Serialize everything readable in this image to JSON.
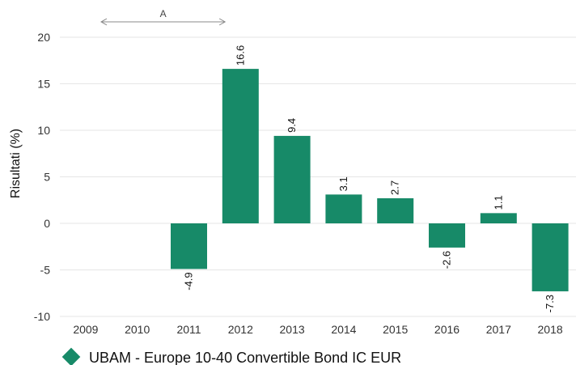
{
  "chart_data": {
    "type": "bar",
    "categories": [
      "2009",
      "2010",
      "2011",
      "2012",
      "2013",
      "2014",
      "2015",
      "2016",
      "2017",
      "2018"
    ],
    "series": [
      {
        "name": "UBAM - Europe 10-40 Convertible Bond IC EUR",
        "values": [
          null,
          null,
          -4.9,
          16.6,
          9.4,
          3.1,
          2.7,
          -2.6,
          1.1,
          -7.3
        ]
      }
    ],
    "data_labels": [
      "",
      "",
      "-4.9",
      "16.6",
      "9.4",
      "3.1",
      "2.7",
      "-2.6",
      "1.1",
      "-7.3"
    ],
    "ylabel": "Risultati (%)",
    "ylim": [
      -10,
      20
    ],
    "yticks": [
      -10,
      -5,
      0,
      5,
      10,
      15,
      20
    ],
    "period_marker": {
      "label": "A",
      "from_category": "2010",
      "to_category": "2012"
    },
    "grid": true,
    "legend_position": "bottom-left",
    "colors": {
      "bar": "#178a68",
      "grid": "#e6e6e6",
      "arrow": "#888888"
    }
  }
}
